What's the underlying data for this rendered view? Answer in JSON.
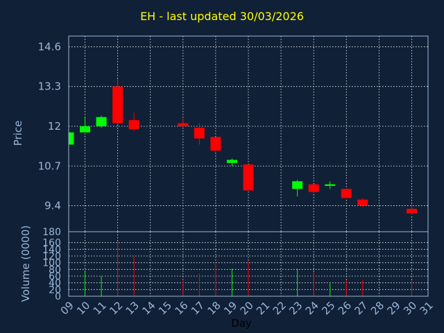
{
  "title": "EH - last updated 30/03/2026",
  "colors": {
    "background": "#102036",
    "up": "#00ff00",
    "down": "#ff0000",
    "grid": "#ffffff",
    "axis_text": "#9ab8d8",
    "title": "#ffff00"
  },
  "chart_data": [
    {
      "type": "candlestick",
      "ylabel": "Price",
      "ylim": [
        13.95,
        4.6
      ],
      "yrange": [
        9.95,
        14.95
      ],
      "yticks": [
        9.4,
        10.7,
        12,
        13.3,
        14.6
      ],
      "candles": [
        {
          "day": 9,
          "open": 11.4,
          "high": 11.8,
          "low": 11.35,
          "close": 11.8
        },
        {
          "day": 10,
          "open": 11.8,
          "high": 12.3,
          "low": 11.8,
          "close": 12.0
        },
        {
          "day": 11,
          "open": 12.0,
          "high": 12.35,
          "low": 11.95,
          "close": 12.3
        },
        {
          "day": 12,
          "open": 13.3,
          "high": 13.55,
          "low": 12.05,
          "close": 12.1
        },
        {
          "day": 13,
          "open": 12.2,
          "high": 12.45,
          "low": 11.85,
          "close": 11.9
        },
        {
          "day": 16,
          "open": 12.1,
          "high": 12.25,
          "low": 12.0,
          "close": 12.0
        },
        {
          "day": 17,
          "open": 11.95,
          "high": 12.1,
          "low": 11.4,
          "close": 11.6
        },
        {
          "day": 18,
          "open": 11.65,
          "high": 11.65,
          "low": 11.15,
          "close": 11.2
        },
        {
          "day": 19,
          "open": 10.8,
          "high": 10.95,
          "low": 10.7,
          "close": 10.9
        },
        {
          "day": 20,
          "open": 10.75,
          "high": 10.75,
          "low": 9.9,
          "close": 9.9
        },
        {
          "day": 23,
          "open": 9.95,
          "high": 10.25,
          "low": 9.7,
          "close": 10.2
        },
        {
          "day": 24,
          "open": 10.1,
          "high": 10.1,
          "low": 9.8,
          "close": 9.85
        },
        {
          "day": 25,
          "open": 10.05,
          "high": 10.2,
          "low": 9.95,
          "close": 10.1
        },
        {
          "day": 26,
          "open": 9.95,
          "high": 9.95,
          "low": 9.65,
          "close": 9.65
        },
        {
          "day": 27,
          "open": 9.6,
          "high": 9.65,
          "low": 9.35,
          "close": 9.4
        },
        {
          "day": 30,
          "open": 9.3,
          "high": 9.45,
          "low": 9.1,
          "close": 9.15
        }
      ]
    },
    {
      "type": "bar",
      "ylabel": "Volume (0000)",
      "ylim": [
        0,
        180
      ],
      "yticks": [
        0,
        20,
        40,
        60,
        80,
        100,
        120,
        140,
        160,
        180
      ],
      "bars": [
        {
          "day": 10,
          "value": 75,
          "dir": "up"
        },
        {
          "day": 11,
          "value": 60,
          "dir": "up"
        },
        {
          "day": 12,
          "value": 163,
          "dir": "down"
        },
        {
          "day": 13,
          "value": 118,
          "dir": "down"
        },
        {
          "day": 16,
          "value": 50,
          "dir": "down"
        },
        {
          "day": 17,
          "value": 68,
          "dir": "down"
        },
        {
          "day": 18,
          "value": 100,
          "dir": "down"
        },
        {
          "day": 19,
          "value": 82,
          "dir": "up"
        },
        {
          "day": 20,
          "value": 103,
          "dir": "down"
        },
        {
          "day": 23,
          "value": 82,
          "dir": "up"
        },
        {
          "day": 24,
          "value": 73,
          "dir": "down"
        },
        {
          "day": 25,
          "value": 38,
          "dir": "up"
        },
        {
          "day": 26,
          "value": 48,
          "dir": "down"
        },
        {
          "day": 27,
          "value": 48,
          "dir": "down"
        },
        {
          "day": 30,
          "value": 48,
          "dir": "down"
        }
      ]
    }
  ],
  "xaxis": {
    "label": "Day",
    "ticks": [
      "09",
      "10",
      "11",
      "12",
      "13",
      "14",
      "15",
      "16",
      "17",
      "18",
      "19",
      "20",
      "21",
      "22",
      "23",
      "24",
      "25",
      "26",
      "27",
      "28",
      "29",
      "30",
      "31"
    ]
  }
}
